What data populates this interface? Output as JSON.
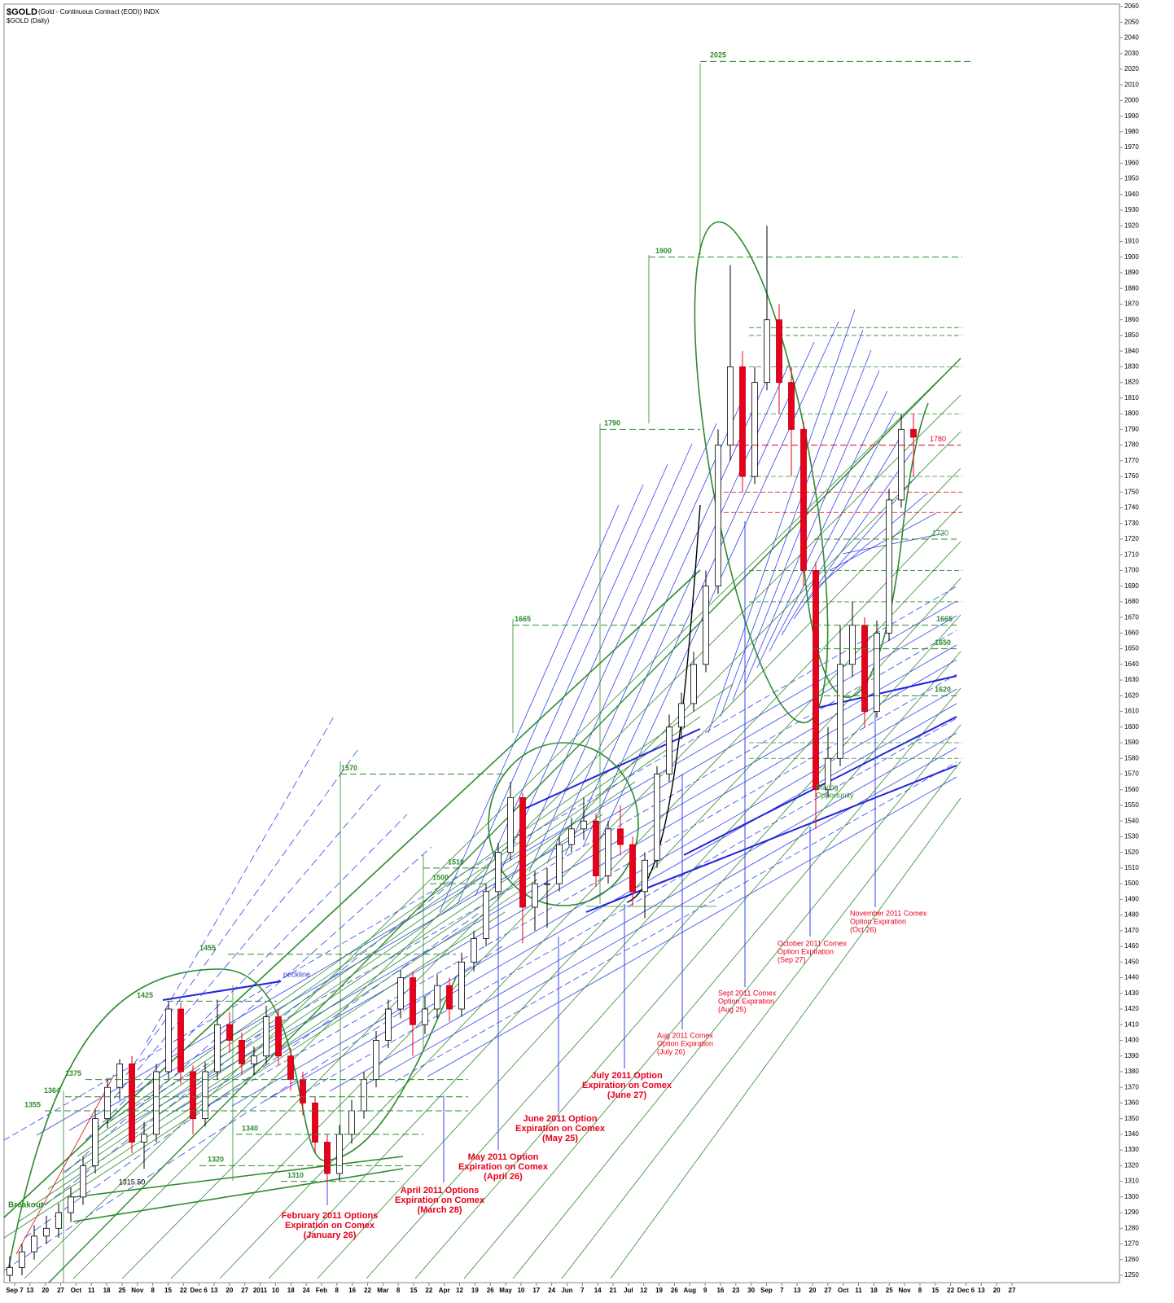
{
  "chart_data": {
    "type": "candlestick",
    "title": "$GOLD",
    "subtitle": "(Gold - Continuous Contract (EOD)) INDX",
    "series_label": "$GOLD (Daily)",
    "x_labels": [
      "Sep 7",
      "13",
      "20",
      "27",
      "Oct",
      "11",
      "18",
      "25",
      "Nov",
      "8",
      "15",
      "22",
      "Dec 6",
      "13",
      "20",
      "27",
      "2011",
      "10",
      "18",
      "24",
      "Feb",
      "8",
      "16",
      "22",
      "Mar",
      "8",
      "15",
      "22",
      "Apr",
      "12",
      "19",
      "26",
      "May",
      "10",
      "17",
      "24",
      "Jun",
      "7",
      "14",
      "21",
      "Jul",
      "12",
      "19",
      "26",
      "Aug",
      "9",
      "16",
      "23",
      "30",
      "Sep",
      "7",
      "13",
      "20",
      "27",
      "Oct",
      "11",
      "18",
      "25",
      "Nov",
      "8",
      "15",
      "22",
      "Dec 6",
      "13",
      "20",
      "27"
    ],
    "open": [
      1250,
      1255,
      1265,
      1275,
      1280,
      1290,
      1300,
      1320,
      1350,
      1370,
      1385,
      1335,
      1340,
      1380,
      1420,
      1380,
      1350,
      1380,
      1410,
      1400,
      1385,
      1390,
      1415,
      1390,
      1375,
      1360,
      1335,
      1315,
      1340,
      1355,
      1375,
      1400,
      1420,
      1440,
      1410,
      1420,
      1435,
      1420,
      1450,
      1465,
      1495,
      1520,
      1555,
      1485,
      1500,
      1500,
      1525,
      1535,
      1540,
      1505,
      1535,
      1525,
      1495,
      1515,
      1570,
      1600,
      1615,
      1640,
      1690,
      1780,
      1830,
      1760,
      1820,
      1860,
      1820,
      1790,
      1700,
      1560,
      1580,
      1640,
      1665,
      1610,
      1660,
      1745,
      1790
    ],
    "high": [
      1262,
      1270,
      1282,
      1288,
      1296,
      1306,
      1326,
      1356,
      1376,
      1388,
      1390,
      1348,
      1385,
      1425,
      1424,
      1384,
      1386,
      1426,
      1418,
      1405,
      1396,
      1422,
      1420,
      1395,
      1380,
      1364,
      1340,
      1346,
      1362,
      1380,
      1406,
      1426,
      1445,
      1444,
      1428,
      1442,
      1440,
      1456,
      1470,
      1500,
      1526,
      1565,
      1558,
      1508,
      1510,
      1530,
      1542,
      1555,
      1545,
      1540,
      1550,
      1530,
      1520,
      1575,
      1608,
      1622,
      1648,
      1700,
      1790,
      1895,
      1840,
      1830,
      1920,
      1870,
      1830,
      1795,
      1705,
      1600,
      1665,
      1680,
      1670,
      1668,
      1752,
      1800,
      1800
    ],
    "low": [
      1246,
      1250,
      1260,
      1270,
      1274,
      1284,
      1295,
      1315,
      1344,
      1362,
      1328,
      1318,
      1335,
      1375,
      1372,
      1340,
      1345,
      1375,
      1392,
      1378,
      1378,
      1385,
      1384,
      1368,
      1352,
      1328,
      1309,
      1310,
      1334,
      1350,
      1370,
      1395,
      1414,
      1390,
      1404,
      1414,
      1412,
      1415,
      1444,
      1460,
      1490,
      1515,
      1462,
      1470,
      1472,
      1495,
      1520,
      1528,
      1498,
      1500,
      1518,
      1486,
      1478,
      1510,
      1565,
      1592,
      1610,
      1635,
      1685,
      1770,
      1750,
      1755,
      1815,
      1800,
      1760,
      1690,
      1535,
      1555,
      1575,
      1632,
      1600,
      1606,
      1655,
      1740,
      1760
    ],
    "close": [
      1255,
      1265,
      1275,
      1280,
      1290,
      1300,
      1320,
      1350,
      1370,
      1385,
      1335,
      1340,
      1380,
      1420,
      1380,
      1350,
      1380,
      1410,
      1400,
      1385,
      1390,
      1415,
      1390,
      1375,
      1360,
      1335,
      1315,
      1340,
      1355,
      1375,
      1400,
      1420,
      1440,
      1410,
      1420,
      1435,
      1420,
      1450,
      1465,
      1495,
      1520,
      1555,
      1485,
      1500,
      1500,
      1525,
      1535,
      1540,
      1505,
      1535,
      1525,
      1495,
      1515,
      1570,
      1600,
      1615,
      1640,
      1690,
      1780,
      1830,
      1760,
      1820,
      1860,
      1820,
      1790,
      1700,
      1560,
      1580,
      1640,
      1665,
      1610,
      1660,
      1745,
      1790,
      1785
    ],
    "up_color": "#ffffff",
    "down_color": "#e8001c",
    "ylim": [
      1250,
      2060
    ],
    "yticks": [
      1250,
      1260,
      1270,
      1280,
      1290,
      1300,
      1310,
      1320,
      1330,
      1340,
      1350,
      1360,
      1370,
      1380,
      1390,
      1400,
      1410,
      1420,
      1430,
      1440,
      1450,
      1460,
      1470,
      1480,
      1490,
      1500,
      1510,
      1520,
      1530,
      1540,
      1550,
      1560,
      1570,
      1580,
      1590,
      1600,
      1610,
      1620,
      1630,
      1640,
      1650,
      1660,
      1670,
      1680,
      1690,
      1700,
      1710,
      1720,
      1730,
      1740,
      1750,
      1760,
      1770,
      1780,
      1790,
      1800,
      1810,
      1820,
      1830,
      1840,
      1850,
      1860,
      1870,
      1880,
      1890,
      1900,
      1910,
      1920,
      1930,
      1940,
      1950,
      1960,
      1970,
      1980,
      1990,
      2000,
      2010,
      2020,
      2030,
      2040,
      2050,
      2060
    ],
    "levels": [
      {
        "value": 2025,
        "color": "#2e8b2e"
      },
      {
        "value": 1900,
        "color": "#2e8b2e"
      },
      {
        "value": 1790,
        "color": "#2e8b2e"
      },
      {
        "value": 1665,
        "color": "#2e8b2e"
      },
      {
        "value": 1570,
        "color": "#2e8b2e"
      },
      {
        "value": 1510,
        "color": "#2e8b2e"
      },
      {
        "value": 1500,
        "color": "#2e8b2e"
      },
      {
        "value": 1455,
        "color": "#2e8b2e"
      },
      {
        "value": 1425,
        "color": "#2e8b2e"
      },
      {
        "value": 1375,
        "color": "#2e8b2e"
      },
      {
        "value": 1364,
        "color": "#2e8b2e"
      },
      {
        "value": 1355,
        "color": "#2e8b2e"
      },
      {
        "value": 1340,
        "color": "#2e8b2e"
      },
      {
        "value": 1320,
        "color": "#2e8b2e"
      },
      {
        "value": 1310,
        "color": "#2e8b2e"
      },
      {
        "value": 1720,
        "color": "#2e8b2e"
      },
      {
        "value": 1665,
        "color": "#2e8b2e"
      },
      {
        "value": 1650,
        "color": "#2e8b2e"
      },
      {
        "value": 1620,
        "color": "#2e8b2e"
      },
      {
        "value": 1780,
        "color": "#e8001c"
      },
      {
        "value": 1315.5,
        "label": "1315.50",
        "color": "#000000"
      }
    ],
    "annotations": [
      {
        "lines": [
          "February 2011 Options",
          "Expiration on Comex",
          "(January 26)"
        ],
        "color": "#e8001c"
      },
      {
        "lines": [
          "April 2011 Options",
          "Expiration on Comex",
          "(March 28)"
        ],
        "color": "#e8001c"
      },
      {
        "lines": [
          "May 2011 Option",
          "Expiration on Comex",
          "(April 26)"
        ],
        "color": "#e8001c"
      },
      {
        "lines": [
          "June 2011 Option",
          "Expiration on Comex",
          "(May 25)"
        ],
        "color": "#e8001c"
      },
      {
        "lines": [
          "July 2011 Option",
          "Expiration on Comex",
          "(June 27)"
        ],
        "color": "#e8001c"
      },
      {
        "lines": [
          "Aug 2011 Comex",
          "Option Expiration",
          "(July 26)"
        ],
        "color": "#e8001c"
      },
      {
        "lines": [
          "Sept 2011 Comex",
          "Option Expiration",
          "(Aug 25)"
        ],
        "color": "#e8001c"
      },
      {
        "lines": [
          "October 2011 Comex",
          "Option Expiration",
          "(Sep 27)"
        ],
        "color": "#e8001c"
      },
      {
        "lines": [
          "November 2011 Comex",
          "Option Expiration",
          "(Oct 26)"
        ],
        "color": "#e8001c"
      },
      {
        "lines": [
          "Buying",
          "Opportunity"
        ],
        "color": "#2e8b2e"
      },
      {
        "lines": [
          "neckline"
        ],
        "color": "#3333cc"
      },
      {
        "lines": [
          "Breakout"
        ],
        "color": "#2e8b2e"
      }
    ]
  }
}
